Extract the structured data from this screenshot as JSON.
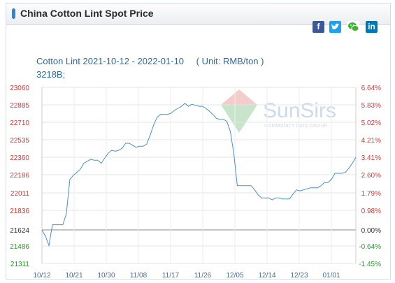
{
  "header": {
    "title": "China Cotton Lint Spot Price"
  },
  "share": {
    "facebook": "facebook-icon",
    "twitter": "twitter-icon",
    "wechat": "wechat-icon",
    "linkedin": "linkedin-icon"
  },
  "watermark": {
    "brand": "SunSirs",
    "tagline": "COMMODITY DATA GROUP"
  },
  "chart_data": {
    "type": "line",
    "title": "Cotton Lint 2021-10-12 - 2022-01-10",
    "unit": "( Unit: RMB/ton )",
    "series_code": "3218B;",
    "x_ticks": [
      "10/12",
      "10/21",
      "10/30",
      "11/08",
      "11/17",
      "11/26",
      "12/05",
      "12/14",
      "12/23",
      "01/01"
    ],
    "y_left_ticks": [
      "23060",
      "22885",
      "22710",
      "22535",
      "22360",
      "22186",
      "22011",
      "21836",
      "21624",
      "21486",
      "21311"
    ],
    "y_left_values": [
      23060,
      22885,
      22710,
      22535,
      22360,
      22186,
      22011,
      21836,
      21624,
      21486,
      21311
    ],
    "y_right_ticks": [
      "6.64%",
      "5.83%",
      "5.02%",
      "4.21%",
      "3.41%",
      "2.60%",
      "1.79%",
      "0.98%",
      "0.00%",
      "-0.64%",
      "-1.45%"
    ],
    "baseline": 21624,
    "ylim": [
      21311,
      23060
    ],
    "grid": true,
    "colors": {
      "line": "#4a90c8",
      "left_axis_pos": "#d23a3a",
      "left_axis_neg": "#2a9a2a",
      "baseline_label": "#333333"
    },
    "series": [
      {
        "values": [
          [
            0,
            21624
          ],
          [
            1,
            21570
          ],
          [
            2,
            21490
          ],
          [
            3,
            21680
          ],
          [
            4,
            21680
          ],
          [
            5,
            21680
          ],
          [
            6,
            21680
          ],
          [
            7,
            21800
          ],
          [
            8,
            22140
          ],
          [
            9,
            22180
          ],
          [
            10,
            22210
          ],
          [
            11,
            22240
          ],
          [
            12,
            22300
          ],
          [
            13,
            22320
          ],
          [
            14,
            22340
          ],
          [
            15,
            22330
          ],
          [
            16,
            22330
          ],
          [
            17,
            22300
          ],
          [
            18,
            22350
          ],
          [
            19,
            22400
          ],
          [
            20,
            22430
          ],
          [
            21,
            22420
          ],
          [
            22,
            22430
          ],
          [
            23,
            22450
          ],
          [
            24,
            22500
          ],
          [
            25,
            22500
          ],
          [
            26,
            22480
          ],
          [
            27,
            22460
          ],
          [
            28,
            22470
          ],
          [
            29,
            22470
          ],
          [
            30,
            22490
          ],
          [
            31,
            22580
          ],
          [
            32,
            22680
          ],
          [
            33,
            22760
          ],
          [
            34,
            22790
          ],
          [
            35,
            22790
          ],
          [
            36,
            22790
          ],
          [
            37,
            22800
          ],
          [
            38,
            22830
          ],
          [
            39,
            22850
          ],
          [
            40,
            22870
          ],
          [
            41,
            22900
          ],
          [
            42,
            22870
          ],
          [
            43,
            22890
          ],
          [
            44,
            22880
          ],
          [
            45,
            22870
          ],
          [
            46,
            22870
          ],
          [
            47,
            22850
          ],
          [
            48,
            22820
          ],
          [
            49,
            22790
          ],
          [
            50,
            22750
          ],
          [
            51,
            22740
          ],
          [
            52,
            22740
          ],
          [
            53,
            22720
          ],
          [
            54,
            22620
          ],
          [
            55,
            22400
          ],
          [
            56,
            22080
          ],
          [
            57,
            22080
          ],
          [
            58,
            22080
          ],
          [
            59,
            22080
          ],
          [
            60,
            22080
          ],
          [
            61,
            22040
          ],
          [
            62,
            21990
          ],
          [
            63,
            21960
          ],
          [
            64,
            21960
          ],
          [
            65,
            21960
          ],
          [
            66,
            21940
          ],
          [
            67,
            21960
          ],
          [
            68,
            21960
          ],
          [
            69,
            21950
          ],
          [
            70,
            21950
          ],
          [
            71,
            21950
          ],
          [
            72,
            22000
          ],
          [
            73,
            22040
          ],
          [
            74,
            22030
          ],
          [
            75,
            22040
          ],
          [
            76,
            22050
          ],
          [
            77,
            22060
          ],
          [
            78,
            22060
          ],
          [
            79,
            22060
          ],
          [
            80,
            22080
          ],
          [
            81,
            22110
          ],
          [
            82,
            22110
          ],
          [
            83,
            22140
          ],
          [
            84,
            22200
          ],
          [
            85,
            22200
          ],
          [
            86,
            22200
          ],
          [
            87,
            22210
          ],
          [
            88,
            22250
          ],
          [
            89,
            22300
          ],
          [
            90,
            22360
          ]
        ]
      }
    ]
  }
}
